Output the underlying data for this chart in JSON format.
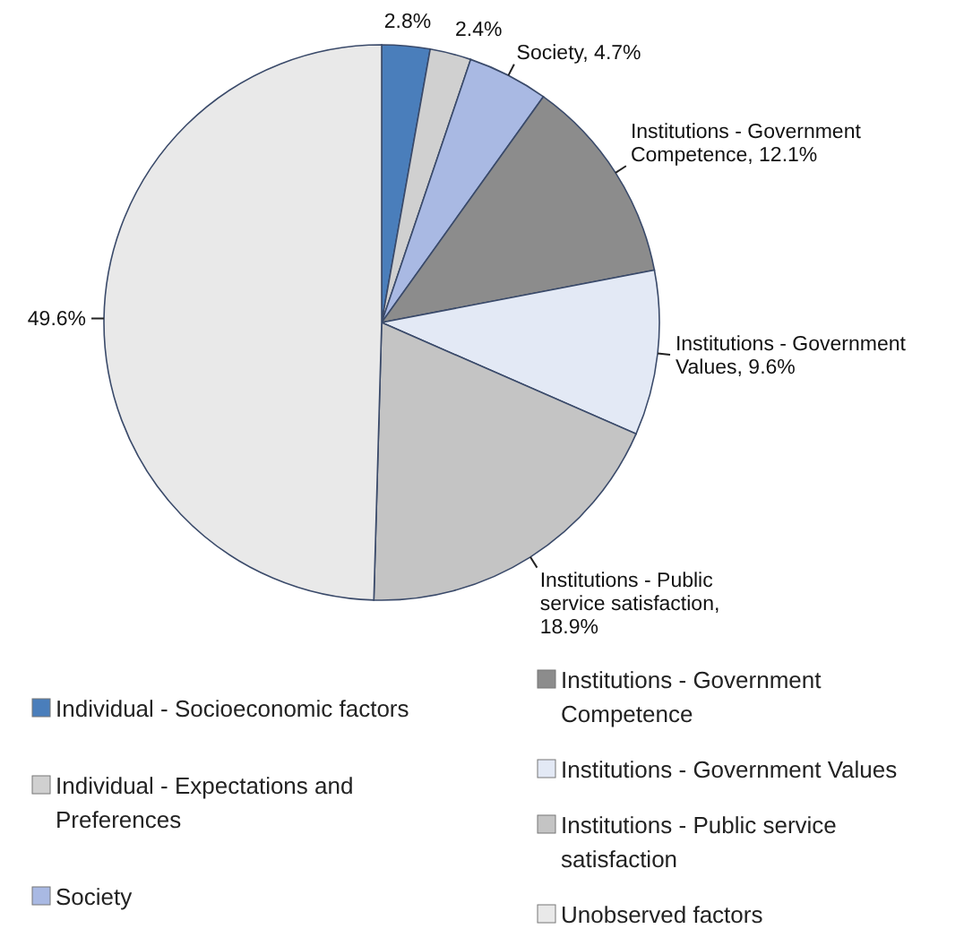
{
  "chart_data": {
    "type": "pie",
    "categories": [
      "Individual - Socioeconomic factors",
      "Individual - Expectations and Preferences",
      "Society",
      "Institutions - Government Competence",
      "Institutions - Government Values",
      "Institutions - Public service satisfaction",
      "Unobserved factors"
    ],
    "values": [
      2.8,
      2.4,
      4.7,
      12.1,
      9.6,
      18.9,
      49.6
    ],
    "colors": [
      "#4a7ebb",
      "#d0d0d0",
      "#a9b9e3",
      "#8c8c8c",
      "#e3e9f5",
      "#c4c4c4",
      "#e9e9e9"
    ],
    "value_labels": [
      "2.8%",
      "2.4%",
      "Society, 4.7%",
      "Institutions - Government Competence, 12.1%",
      "Institutions - Government Values, 9.6%",
      "Institutions - Public service satisfaction, 18.9%",
      "49.6%"
    ],
    "legend": "bottom"
  }
}
